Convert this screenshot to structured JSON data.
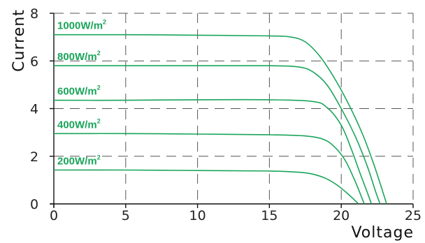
{
  "chart_data": {
    "type": "line",
    "xlabel": "Voltage",
    "ylabel": "Current",
    "xlim": [
      0,
      25
    ],
    "ylim": [
      0,
      8
    ],
    "xticks": [
      0,
      5,
      10,
      15,
      20,
      25
    ],
    "yticks": [
      0,
      2,
      4,
      6,
      8
    ],
    "grid": true,
    "line_color": "#1aa55a",
    "series": [
      {
        "name": "1000W/m",
        "name_sup": "2",
        "x": [
          0,
          5,
          10,
          15,
          16.5,
          17.5,
          18.5,
          19.5,
          20.5,
          21.5,
          22.3,
          23.0,
          23.15
        ],
        "y": [
          7.1,
          7.1,
          7.08,
          7.05,
          7.0,
          6.8,
          6.2,
          5.3,
          4.2,
          2.9,
          1.6,
          0.3,
          0
        ]
      },
      {
        "name": "800W/m",
        "name_sup": "2",
        "x": [
          0,
          5,
          10,
          15,
          17,
          18,
          19,
          20,
          21,
          21.8,
          22.4,
          22.7
        ],
        "y": [
          5.8,
          5.8,
          5.8,
          5.8,
          5.75,
          5.55,
          5.0,
          4.0,
          2.8,
          1.6,
          0.5,
          0
        ]
      },
      {
        "name": "600W/m",
        "name_sup": "2",
        "x": [
          0,
          5,
          10,
          15,
          18,
          19,
          20,
          20.7,
          21.3,
          21.8,
          22.1
        ],
        "y": [
          4.35,
          4.35,
          4.37,
          4.37,
          4.3,
          4.05,
          3.3,
          2.3,
          1.3,
          0.5,
          0
        ]
      },
      {
        "name": "400W/m",
        "name_sup": "2",
        "x": [
          0,
          5,
          10,
          15,
          17.5,
          18.8,
          19.6,
          20.3,
          21.0,
          21.6
        ],
        "y": [
          2.95,
          2.95,
          2.93,
          2.9,
          2.85,
          2.7,
          2.35,
          1.8,
          0.9,
          0
        ]
      },
      {
        "name": "200W/m",
        "name_sup": "2",
        "x": [
          0,
          5,
          10,
          15,
          17.0,
          18.0,
          19.0,
          19.8,
          20.5,
          21.2
        ],
        "y": [
          1.42,
          1.42,
          1.4,
          1.38,
          1.33,
          1.25,
          1.05,
          0.75,
          0.4,
          0
        ]
      }
    ]
  }
}
